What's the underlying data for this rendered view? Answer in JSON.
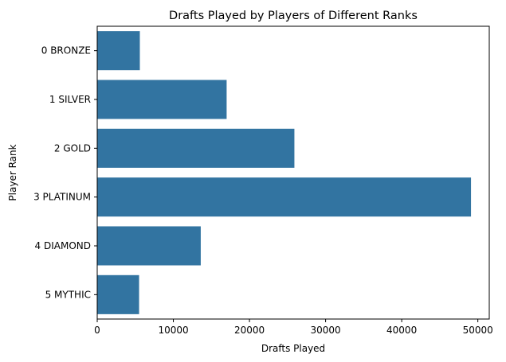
{
  "chart_data": {
    "type": "bar",
    "orientation": "horizontal",
    "title": "Drafts Played by Players of Different Ranks",
    "xlabel": "Drafts Played",
    "ylabel": "Player Rank",
    "categories": [
      "0 BRONZE",
      "1 SILVER",
      "2 GOLD",
      "3 PLATINUM",
      "4 DIAMOND",
      "5 MYTHIC"
    ],
    "values": [
      5600,
      17000,
      25900,
      49100,
      13600,
      5500
    ],
    "xlim": [
      0,
      51500
    ],
    "xticks": [
      0,
      10000,
      20000,
      30000,
      40000,
      50000
    ],
    "xtick_labels": [
      "0",
      "10000",
      "20000",
      "30000",
      "40000",
      "50000"
    ],
    "bar_color": "#3274a1",
    "grid": false,
    "legend": "none"
  }
}
